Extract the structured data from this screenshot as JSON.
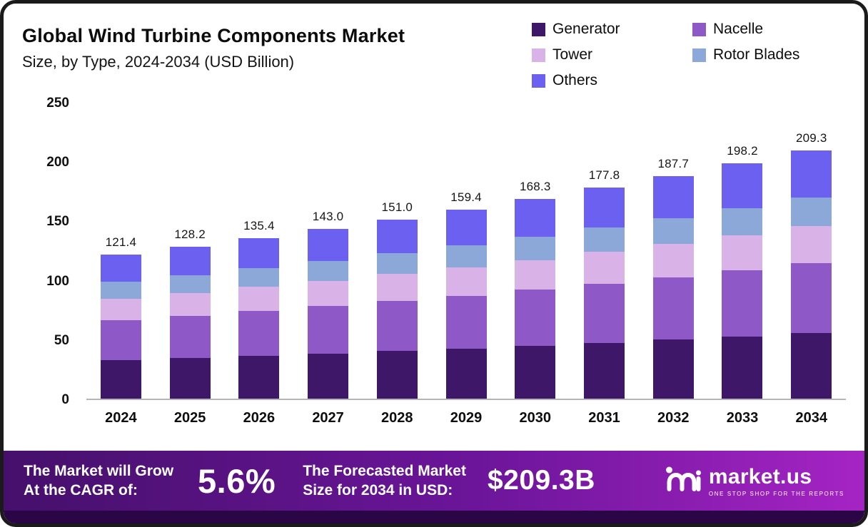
{
  "header": {
    "title": "Global Wind Turbine Components Market",
    "subtitle": "Size, by Type, 2024-2034 (USD Billion)"
  },
  "colors": {
    "generator": "#3f1769",
    "nacelle": "#8f58c7",
    "tower": "#d9b2e8",
    "rotor_blades": "#8ca8d8",
    "others": "#6b60f0",
    "banner_left": "#45106b",
    "banner_right": "#a524c4"
  },
  "legend": [
    {
      "label": "Generator",
      "color": "#3f1769"
    },
    {
      "label": "Nacelle",
      "color": "#8f58c7"
    },
    {
      "label": "Tower",
      "color": "#d9b2e8"
    },
    {
      "label": "Rotor Blades",
      "color": "#8ca8d8"
    },
    {
      "label": "Others",
      "color": "#6b60f0"
    }
  ],
  "chart_data": {
    "type": "bar",
    "stacked": true,
    "title": "Global Wind Turbine Components Market Size, by Type, 2024-2034 (USD Billion)",
    "categories": [
      "2024",
      "2025",
      "2026",
      "2027",
      "2028",
      "2029",
      "2030",
      "2031",
      "2032",
      "2033",
      "2034"
    ],
    "totals": [
      121.4,
      128.2,
      135.4,
      143.0,
      151.0,
      159.4,
      168.3,
      177.8,
      187.7,
      198.2,
      209.3
    ],
    "series": [
      {
        "name": "Generator",
        "color": "#3f1769",
        "values": [
          32.2,
          34.0,
          35.9,
          37.9,
          40.0,
          42.2,
          44.6,
          47.1,
          49.7,
          52.5,
          55.4
        ]
      },
      {
        "name": "Nacelle",
        "color": "#8f58c7",
        "values": [
          34.0,
          35.9,
          37.9,
          40.0,
          42.3,
          44.6,
          47.1,
          49.8,
          52.6,
          55.5,
          58.6
        ]
      },
      {
        "name": "Tower",
        "color": "#d9b2e8",
        "values": [
          18.2,
          19.2,
          20.3,
          21.5,
          22.7,
          23.9,
          25.2,
          26.7,
          28.2,
          29.7,
          31.4
        ]
      },
      {
        "name": "Rotor Blades",
        "color": "#8ca8d8",
        "values": [
          14.0,
          14.8,
          15.6,
          16.5,
          17.4,
          18.4,
          19.4,
          20.5,
          21.6,
          22.8,
          24.1
        ]
      },
      {
        "name": "Others",
        "color": "#6b60f0",
        "values": [
          23.0,
          24.3,
          25.7,
          27.1,
          28.6,
          30.3,
          32.0,
          33.7,
          35.6,
          37.7,
          39.8
        ]
      }
    ],
    "ylim": [
      0,
      250
    ],
    "yticks": [
      0,
      50,
      100,
      150,
      200,
      250
    ],
    "grid": false,
    "legend_position": "top-right"
  },
  "footer": {
    "cagr_label_line1": "The Market will Grow",
    "cagr_label_line2": "At the CAGR of:",
    "cagr_value": "5.6%",
    "forecast_label_line1": "The Forecasted Market",
    "forecast_label_line2": "Size for 2034 in USD:",
    "forecast_value": "$209.3B",
    "brand": "market.us",
    "tagline": "ONE STOP SHOP FOR THE REPORTS"
  }
}
